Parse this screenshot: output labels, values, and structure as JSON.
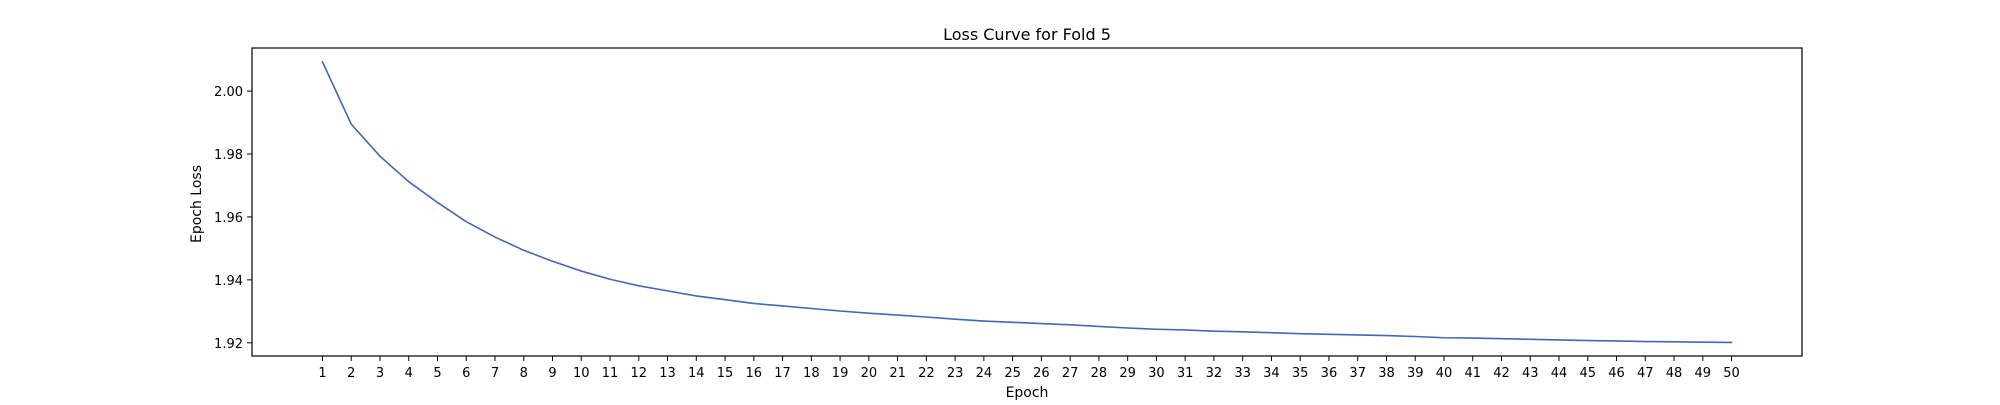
{
  "chart_data": {
    "type": "line",
    "title": "Loss Curve for Fold 5",
    "xlabel": "Epoch",
    "ylabel": "Epoch Loss",
    "x": [
      1,
      2,
      3,
      4,
      5,
      6,
      7,
      8,
      9,
      10,
      11,
      12,
      13,
      14,
      15,
      16,
      17,
      18,
      19,
      20,
      21,
      22,
      23,
      24,
      25,
      26,
      27,
      28,
      29,
      30,
      31,
      32,
      33,
      34,
      35,
      36,
      37,
      38,
      39,
      40,
      41,
      42,
      43,
      44,
      45,
      46,
      47,
      48,
      49,
      50
    ],
    "series": [
      {
        "name": "",
        "color": "#4267b8",
        "values": [
          2.0093,
          1.9895,
          1.9793,
          1.9712,
          1.9646,
          1.9585,
          1.9536,
          1.9494,
          1.9459,
          1.9428,
          1.9402,
          1.9381,
          1.9365,
          1.9349,
          1.9337,
          1.9325,
          1.9317,
          1.9309,
          1.9301,
          1.9294,
          1.9288,
          1.9282,
          1.9275,
          1.9269,
          1.9265,
          1.9261,
          1.9257,
          1.9252,
          1.9247,
          1.9243,
          1.9241,
          1.9237,
          1.9235,
          1.9232,
          1.9229,
          1.9227,
          1.9225,
          1.9223,
          1.922,
          1.9216,
          1.9215,
          1.9213,
          1.9211,
          1.9209,
          1.9207,
          1.9206,
          1.9204,
          1.9203,
          1.9202,
          1.9201
        ]
      }
    ],
    "xlim": [
      -1.45,
      52.45
    ],
    "ylim": [
      1.9158,
      2.0137
    ],
    "yticks": [
      1.92,
      1.94,
      1.96,
      1.98,
      2.0
    ],
    "ytick_labels": [
      "1.92",
      "1.94",
      "1.96",
      "1.98",
      "2.00"
    ],
    "grid": false,
    "legend": "none"
  }
}
